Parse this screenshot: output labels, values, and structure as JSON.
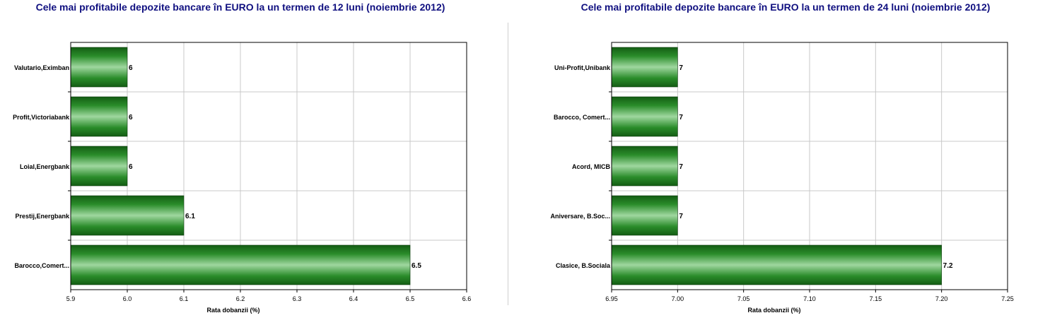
{
  "chart_data": [
    {
      "type": "bar",
      "orientation": "horizontal",
      "title": "Cele mai profitabile depozite bancare în EURO la un termen de 12 luni (noiembrie 2012)",
      "xlabel": "Rata dobanzii (%)",
      "ylabel": "",
      "categories": [
        "Valutario,Eximban",
        "Profit,Victoriabank",
        "Loial,Energbank",
        "Prestij,Energbank",
        "Barocco,Comert..."
      ],
      "values": [
        6,
        6,
        6,
        6.1,
        6.5
      ],
      "value_labels": [
        "6",
        "6",
        "6",
        "6.1",
        "6.5"
      ],
      "xlim": [
        5.9,
        6.6
      ],
      "xticks": [
        "5.9",
        "6.0",
        "6.1",
        "6.2",
        "6.3",
        "6.4",
        "6.5",
        "6.6"
      ],
      "grid": true,
      "bar_color": "#2a8a2a"
    },
    {
      "type": "bar",
      "orientation": "horizontal",
      "title": "Cele mai profitabile depozite bancare în EURO la un termen de 24 luni (noiembrie 2012)",
      "xlabel": "Rata dobanzii (%)",
      "ylabel": "",
      "categories": [
        "Uni-Profit,Unibank",
        "Barocco, Comert...",
        "Acord, MICB",
        "Aniversare, B.Soc...",
        "Clasice, B.Sociala"
      ],
      "values": [
        7,
        7,
        7,
        7,
        7.2
      ],
      "value_labels": [
        "7",
        "7",
        "7",
        "7",
        "7.2"
      ],
      "xlim": [
        6.95,
        7.25
      ],
      "xticks": [
        "6.95",
        "7.00",
        "7.05",
        "7.10",
        "7.15",
        "7.20",
        "7.25"
      ],
      "grid": true,
      "bar_color": "#2a8a2a"
    }
  ]
}
